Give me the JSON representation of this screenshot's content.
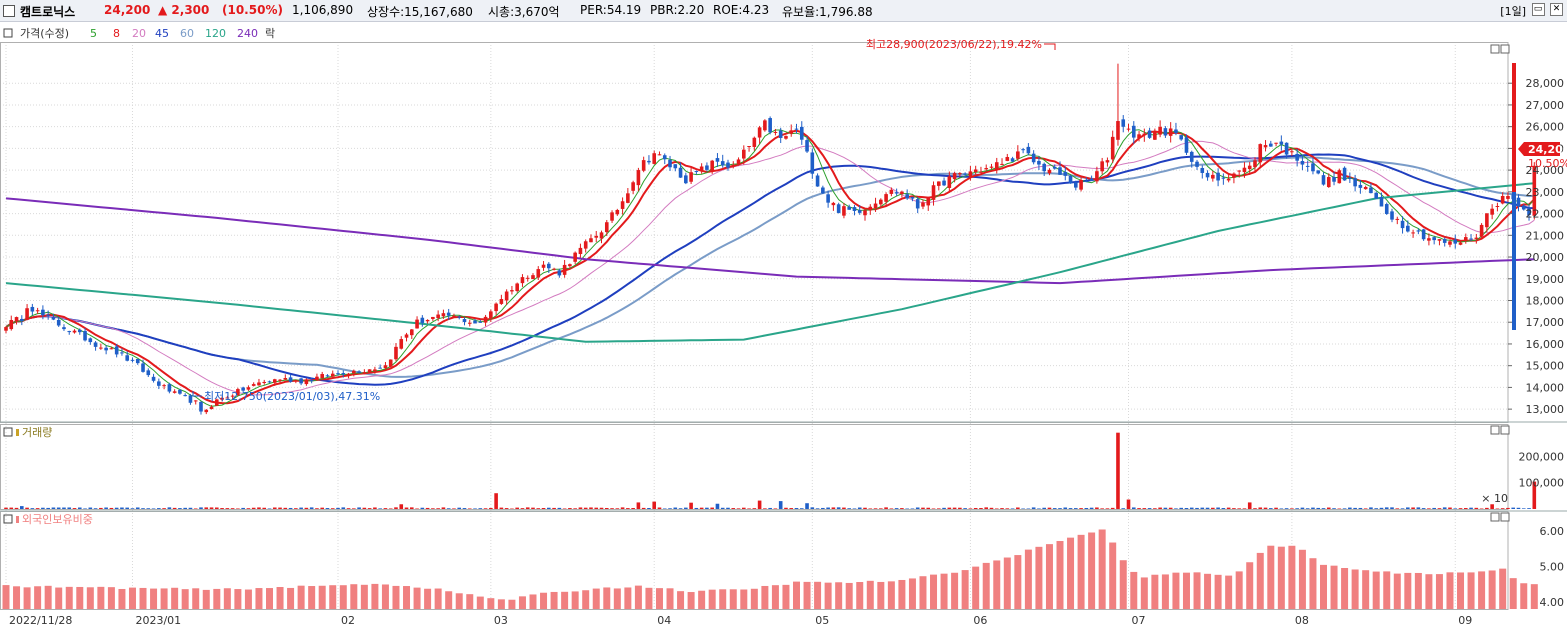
{
  "header": {
    "name": "캠트로닉스",
    "price": "24,200",
    "change": "▲ 2,300",
    "change_rate": "(10.50%)",
    "volume": "1,106,890",
    "listed": "상장수:15,167,680",
    "market_cap": "시총:3,670억",
    "per": "PER:54.19",
    "pbr": "PBR:2.20",
    "roe": "ROE:4.23",
    "reserve": "유보율:1,796.88",
    "period": "[1일]"
  },
  "legend": {
    "price": "가격(수정)",
    "ma": [
      "5",
      "8",
      "20",
      "45",
      "60",
      "120",
      "240"
    ],
    "last": "락"
  },
  "annotations": {
    "high": "최고28,900(2023/06/22),19.42%",
    "low": "최저12,750(2023/01/03),47.31%"
  },
  "current_marker": {
    "price": "24,200",
    "rate": "10.50%"
  },
  "volume_panel": {
    "title": "거래량",
    "multiplier": "× 10"
  },
  "foreign_panel": {
    "title": "외국인보유비중"
  },
  "colors": {
    "up": "#e31a1c",
    "down": "#1f5fc8",
    "ma5": "#2ca02c",
    "ma8": "#e31a1c",
    "ma20": "#d37bc0",
    "ma45": "#1f3fbf",
    "ma60": "#7a9cc8",
    "ma120": "#2aa58a",
    "ma240": "#7a2cb8",
    "foreign": "#f08080",
    "grid": "#d9d9d9"
  },
  "chart_data": [
    {
      "type": "candlestick",
      "title": "",
      "xlabel": "",
      "ylabel": "",
      "x_ticks": [
        "2022/11/28",
        "2023/01",
        "02",
        "03",
        "04",
        "05",
        "06",
        "07",
        "08",
        "09"
      ],
      "y_ticks": [
        "13,000",
        "14,000",
        "15,000",
        "16,000",
        "17,000",
        "18,000",
        "19,000",
        "20,000",
        "21,000",
        "22,000",
        "23,000",
        "24,000",
        "25,000",
        "26,000",
        "27,000",
        "28,000"
      ],
      "ylim": [
        12500,
        28700
      ],
      "close_keypoints": [
        [
          0,
          16900
        ],
        [
          3,
          17200
        ],
        [
          4,
          17800
        ],
        [
          7,
          17300
        ],
        [
          10,
          16900
        ],
        [
          14,
          16400
        ],
        [
          17,
          16000
        ],
        [
          21,
          15600
        ],
        [
          25,
          15000
        ],
        [
          28,
          14300
        ],
        [
          32,
          13700
        ],
        [
          36,
          13300
        ],
        [
          37,
          12800
        ],
        [
          40,
          13400
        ],
        [
          44,
          13800
        ],
        [
          48,
          14200
        ],
        [
          52,
          14400
        ],
        [
          56,
          14300
        ],
        [
          60,
          14500
        ],
        [
          64,
          14700
        ],
        [
          68,
          14800
        ],
        [
          72,
          15000
        ],
        [
          75,
          16200
        ],
        [
          78,
          17000
        ],
        [
          81,
          17200
        ],
        [
          84,
          17300
        ],
        [
          87,
          17100
        ],
        [
          90,
          16900
        ],
        [
          93,
          17900
        ],
        [
          96,
          18600
        ],
        [
          99,
          19200
        ],
        [
          102,
          19600
        ],
        [
          105,
          19300
        ],
        [
          108,
          20100
        ],
        [
          111,
          20800
        ],
        [
          114,
          21500
        ],
        [
          117,
          22600
        ],
        [
          120,
          24100
        ],
        [
          123,
          24800
        ],
        [
          126,
          24200
        ],
        [
          129,
          23600
        ],
        [
          132,
          24000
        ],
        [
          135,
          24400
        ],
        [
          138,
          24100
        ],
        [
          141,
          25100
        ],
        [
          144,
          26100
        ],
        [
          147,
          25400
        ],
        [
          150,
          25900
        ],
        [
          152,
          24700
        ],
        [
          154,
          23400
        ],
        [
          156,
          22600
        ],
        [
          158,
          22200
        ],
        [
          161,
          22100
        ],
        [
          164,
          22400
        ],
        [
          167,
          23000
        ],
        [
          170,
          23000
        ],
        [
          173,
          22300
        ],
        [
          175,
          22900
        ],
        [
          178,
          23500
        ],
        [
          181,
          23800
        ],
        [
          184,
          24000
        ],
        [
          187,
          24100
        ],
        [
          190,
          24500
        ],
        [
          193,
          24800
        ],
        [
          196,
          24200
        ],
        [
          200,
          23800
        ],
        [
          203,
          23300
        ],
        [
          206,
          23500
        ],
        [
          209,
          24600
        ],
        [
          211,
          26400
        ],
        [
          213,
          25800
        ],
        [
          216,
          25500
        ],
        [
          219,
          25900
        ],
        [
          222,
          25600
        ],
        [
          225,
          24600
        ],
        [
          227,
          23700
        ],
        [
          230,
          23600
        ],
        [
          233,
          23900
        ],
        [
          236,
          24100
        ],
        [
          238,
          25100
        ],
        [
          241,
          25300
        ],
        [
          244,
          24700
        ],
        [
          247,
          24300
        ],
        [
          250,
          23400
        ],
        [
          253,
          23800
        ],
        [
          256,
          23300
        ],
        [
          259,
          22900
        ],
        [
          262,
          22100
        ],
        [
          265,
          21500
        ],
        [
          268,
          21100
        ],
        [
          271,
          20800
        ],
        [
          274,
          20600
        ],
        [
          276,
          20700
        ],
        [
          279,
          21000
        ],
        [
          282,
          22400
        ],
        [
          285,
          22800
        ],
        [
          287,
          22500
        ],
        [
          289,
          21900
        ],
        [
          290,
          24200
        ]
      ],
      "extremes": {
        "high": 28900,
        "high_date": "2023/06/22",
        "low": 12750,
        "low_date": "2023/01/03",
        "last": 24200
      },
      "moving_averages": [
        "5",
        "8",
        "20",
        "45",
        "60",
        "120",
        "240"
      ]
    },
    {
      "type": "bar",
      "title": "거래량",
      "y_ticks": [
        "100,000",
        "200,000"
      ],
      "ylim": [
        0,
        285000
      ],
      "baseline": 3500,
      "spikes": [
        [
          3,
          11000
        ],
        [
          75,
          18000
        ],
        [
          93,
          60000
        ],
        [
          120,
          25000
        ],
        [
          123,
          28000
        ],
        [
          130,
          24000
        ],
        [
          135,
          20000
        ],
        [
          143,
          32000
        ],
        [
          147,
          30000
        ],
        [
          152,
          22000
        ],
        [
          211,
          290000
        ],
        [
          213,
          36000
        ],
        [
          236,
          25000
        ],
        [
          282,
          18000
        ],
        [
          290,
          104000
        ]
      ]
    },
    {
      "type": "bar",
      "title": "외국인보유비중",
      "y_ticks": [
        "4.00",
        "5.00",
        "6.00"
      ],
      "ylim": [
        3.8,
        6.4
      ],
      "keypoints": [
        [
          0,
          4.45
        ],
        [
          20,
          4.4
        ],
        [
          40,
          4.35
        ],
        [
          60,
          4.45
        ],
        [
          70,
          4.52
        ],
        [
          80,
          4.4
        ],
        [
          90,
          4.15
        ],
        [
          95,
          4.05
        ],
        [
          100,
          4.2
        ],
        [
          110,
          4.35
        ],
        [
          120,
          4.45
        ],
        [
          130,
          4.3
        ],
        [
          140,
          4.35
        ],
        [
          150,
          4.55
        ],
        [
          160,
          4.55
        ],
        [
          170,
          4.6
        ],
        [
          180,
          4.85
        ],
        [
          190,
          5.25
        ],
        [
          200,
          5.75
        ],
        [
          205,
          5.9
        ],
        [
          209,
          6.1
        ],
        [
          211,
          5.3
        ],
        [
          215,
          4.7
        ],
        [
          225,
          4.85
        ],
        [
          233,
          4.75
        ],
        [
          240,
          5.6
        ],
        [
          245,
          5.55
        ],
        [
          250,
          5.05
        ],
        [
          260,
          4.85
        ],
        [
          270,
          4.8
        ],
        [
          280,
          4.85
        ],
        [
          284,
          4.95
        ],
        [
          287,
          4.55
        ],
        [
          290,
          4.48
        ]
      ]
    }
  ]
}
